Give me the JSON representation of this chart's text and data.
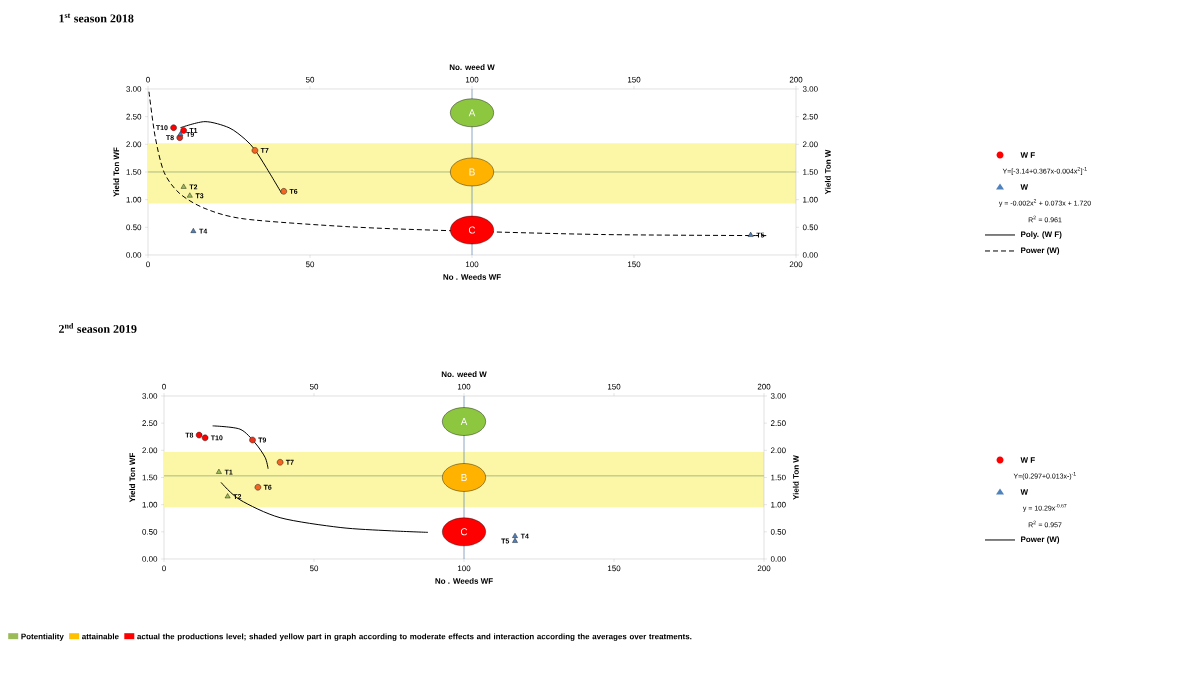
{
  "chart_data": [
    {
      "type": "scatter",
      "title": "1$^{st}$ season 2018",
      "xlabel": "No . Weeds  WF",
      "ylabel": "Yield Ton WF",
      "x2label": "No. weed W",
      "y2label": "Yield Ton W",
      "xlim": [
        0,
        200
      ],
      "xticks": [
        0,
        50,
        100,
        150,
        200
      ],
      "x2lim": [
        0,
        200
      ],
      "x2ticks": [
        0,
        50,
        100,
        150,
        200
      ],
      "ylim": [
        0,
        3
      ],
      "yticks": [
        {
          "value": 0,
          "label": "0.00"
        },
        {
          "value": 0.5,
          "label": "0.50"
        },
        {
          "value": 1,
          "label": "1.00"
        },
        {
          "value": 1.5,
          "label": "1.50"
        },
        {
          "value": 2,
          "label": "2.00"
        },
        {
          "value": 2.5,
          "label": "2.50"
        },
        {
          "value": 3,
          "label": "3.00"
        }
      ],
      "y2lim": [
        0,
        3
      ],
      "y2ticks": [
        {
          "value": 0,
          "label": "0.00"
        },
        {
          "value": 0.5,
          "label": "0.50"
        },
        {
          "value": 1,
          "label": "1.00"
        },
        {
          "value": 1.5,
          "label": "1.50"
        },
        {
          "value": 2,
          "label": "2.00"
        },
        {
          "value": 2.5,
          "label": "2.50"
        },
        {
          "value": 3,
          "label": "3.00"
        }
      ],
      "legend": "right",
      "bands": [
        {
          "axis": "y",
          "from": 0.93,
          "to": 2.02,
          "color": "#fbf7a6"
        }
      ],
      "ref_lines": [
        {
          "axis": "y",
          "value": 1.5,
          "color": "#9aaa7a"
        },
        {
          "axis": "x",
          "value": 100,
          "color": "#6f8fb5"
        }
      ],
      "series": [
        {
          "name": "W F",
          "type": "scatter",
          "marker": "circle",
          "color": "#ff0000",
          "colors": [
            "#ff0000",
            "#ff0000",
            "#e8281e",
            "#f26522",
            "#f26522"
          ],
          "x": [
            7.9,
            11,
            9.8,
            33,
            41.9
          ],
          "values": [
            2.3,
            2.25,
            2.12,
            1.89,
            1.15
          ]
        },
        {
          "name": "W",
          "type": "scatter",
          "marker": "triangle",
          "color": "#4f81bd",
          "colors": [
            "#4f81bd",
            "#9bbb59",
            "#9bbb59",
            "#4f81bd",
            "#4f81bd"
          ],
          "x": [
            10,
            11,
            12.9,
            14,
            186
          ],
          "values": [
            2.18,
            1.23,
            1.07,
            0.43,
            0.36
          ]
        },
        {
          "name": "Poly. (W F)",
          "type": "line",
          "marker": "none",
          "line_style": "solid",
          "color": "#000000",
          "x": [
            10,
            17.6,
            25,
            30,
            33,
            36.5,
            41.3
          ],
          "values": [
            2.3,
            2.41,
            2.3,
            2.09,
            1.9,
            1.58,
            1.11
          ]
        },
        {
          "name": "Power (W)",
          "type": "line",
          "marker": "none",
          "line_style": "dashed",
          "color": "#000000",
          "x": [
            0.3,
            2.2,
            5,
            9.8,
            17.6,
            30,
            62,
            93,
            140,
            191.6
          ],
          "values": [
            2.95,
            2.14,
            1.49,
            1.11,
            0.84,
            0.65,
            0.51,
            0.44,
            0.37,
            0.35
          ]
        },
        {
          "type": "scatter",
          "marker": "circle",
          "colors": [
            "#8dc63f",
            "#ffb300",
            "#ff0000"
          ],
          "x": [
            100,
            100,
            100
          ],
          "values": [
            2.57,
            1.5,
            0.45
          ],
          "value_labels": [
            "A",
            "B",
            "C"
          ]
        }
      ],
      "annotations": [
        {
          "text": "T10",
          "x": 7.9,
          "y": 2.3
        },
        {
          "text": "T1",
          "x": 11,
          "y": 2.25
        },
        {
          "text": "T9",
          "x": 10,
          "y": 2.18
        },
        {
          "text": "T8",
          "x": 9.8,
          "y": 2.12
        },
        {
          "text": "T7",
          "x": 33,
          "y": 1.89
        },
        {
          "text": "T6",
          "x": 41.9,
          "y": 1.15
        },
        {
          "text": "T2",
          "x": 11,
          "y": 1.23
        },
        {
          "text": "T3",
          "x": 12.9,
          "y": 1.07
        },
        {
          "text": "T4",
          "x": 14,
          "y": 0.43
        },
        {
          "text": "T5",
          "x": 186,
          "y": 0.36
        },
        "Y=[-3.14+0.367x-0.004x$^{2}$]$^{-1}$",
        "y = -0.002x$^{2}$ + 0.073x + 1.720",
        "R$^{2}$ = 0.961"
      ]
    },
    {
      "type": "scatter",
      "title": "2$^{nd}$ season 2019",
      "xlabel": "No . Weeds  WF",
      "ylabel": "Yield Ton WF",
      "x2label": "No. weed W",
      "y2label": "Yield Ton W",
      "xlim": [
        0,
        200
      ],
      "xticks": [
        0,
        50,
        100,
        150,
        200
      ],
      "x2lim": [
        0,
        200
      ],
      "x2ticks": [
        0,
        50,
        100,
        150,
        200
      ],
      "ylim": [
        0,
        3
      ],
      "yticks": [
        {
          "value": 0,
          "label": "0.00"
        },
        {
          "value": 0.5,
          "label": "0.50"
        },
        {
          "value": 1,
          "label": "1.00"
        },
        {
          "value": 1.5,
          "label": "1.50"
        },
        {
          "value": 2,
          "label": "2.00"
        },
        {
          "value": 2.5,
          "label": "2.50"
        },
        {
          "value": 3,
          "label": "3.00"
        }
      ],
      "y2lim": [
        0,
        3
      ],
      "y2ticks": [
        {
          "value": 0,
          "label": "0.00"
        },
        {
          "value": 0.5,
          "label": "0.50"
        },
        {
          "value": 1,
          "label": "1.00"
        },
        {
          "value": 1.5,
          "label": "1.50"
        },
        {
          "value": 2,
          "label": "2.00"
        },
        {
          "value": 2.5,
          "label": "2.50"
        },
        {
          "value": 3,
          "label": "3.00"
        }
      ],
      "legend": "right",
      "bands": [
        {
          "axis": "y",
          "from": 0.95,
          "to": 1.97,
          "color": "#fbf7a6"
        }
      ],
      "ref_lines": [
        {
          "axis": "y",
          "value": 1.53,
          "color": "#9aaa7a"
        },
        {
          "axis": "x",
          "value": 100,
          "color": "#6f8fb5"
        }
      ],
      "series": [
        {
          "name": "W F",
          "type": "scatter",
          "marker": "circle",
          "color": "#ff0000",
          "colors": [
            "#ff0000",
            "#ff0000",
            "#e8361e",
            "#f26522",
            "#f26522"
          ],
          "x": [
            11.7,
            13.7,
            29.5,
            38.7,
            31.3
          ],
          "values": [
            2.28,
            2.23,
            2.19,
            1.78,
            1.32
          ]
        },
        {
          "name": "W",
          "type": "scatter",
          "marker": "triangle",
          "color": "#4f81bd",
          "colors": [
            "#9bbb59",
            "#9bbb59",
            "#4f81bd",
            "#4f81bd"
          ],
          "x": [
            18.3,
            21.2,
            117,
            117
          ],
          "values": [
            1.6,
            1.15,
            0.42,
            0.33
          ]
        },
        {
          "type": "line",
          "marker": "none",
          "line_style": "solid",
          "color": "#000000",
          "x": [
            16.2,
            25.3,
            30.3,
            33.7,
            34.7
          ],
          "values": [
            2.45,
            2.39,
            2.14,
            1.87,
            1.66
          ]
        },
        {
          "name": "Power (W)",
          "type": "line",
          "marker": "none",
          "line_style": "solid",
          "color": "#000000",
          "x": [
            19,
            25.3,
            38.7,
            58.7,
            75,
            88
          ],
          "values": [
            1.41,
            1.09,
            0.76,
            0.58,
            0.52,
            0.49
          ]
        },
        {
          "type": "scatter",
          "marker": "circle",
          "colors": [
            "#8dc63f",
            "#ffb300",
            "#ff0000"
          ],
          "x": [
            100,
            100,
            100
          ],
          "values": [
            2.53,
            1.5,
            0.5
          ],
          "value_labels": [
            "A",
            "B",
            "C"
          ]
        }
      ],
      "annotations": [
        {
          "text": "T10",
          "x": 13.7,
          "y": 2.23
        },
        {
          "text": "T9",
          "x": 29.5,
          "y": 2.19
        },
        {
          "text": "T8",
          "x": 11.7,
          "y": 2.28
        },
        {
          "text": "T7",
          "x": 38.7,
          "y": 1.78
        },
        {
          "text": "T6",
          "x": 31.3,
          "y": 1.32
        },
        {
          "text": "T1",
          "x": 18.3,
          "y": 1.6
        },
        {
          "text": "T2",
          "x": 21.2,
          "y": 1.15
        },
        {
          "text": "T4",
          "x": 117,
          "y": 0.42
        },
        {
          "text": "T5",
          "x": 117,
          "y": 0.33
        },
        "Y=(0.297+0.013x-)$^{-1}$",
        "y = 10.29x$^{-0.67}$",
        "R$^{2}$ = 0.957"
      ]
    },
    {
      "type": "other",
      "categories": [
        "Potentiality",
        "attainable",
        "actual the productions level; shaded yellow part in graph according to moderate effects and interaction according the averages over treatments."
      ],
      "colors": [
        "#9bbb59",
        "#ffc000",
        "#ff0000"
      ]
    }
  ]
}
